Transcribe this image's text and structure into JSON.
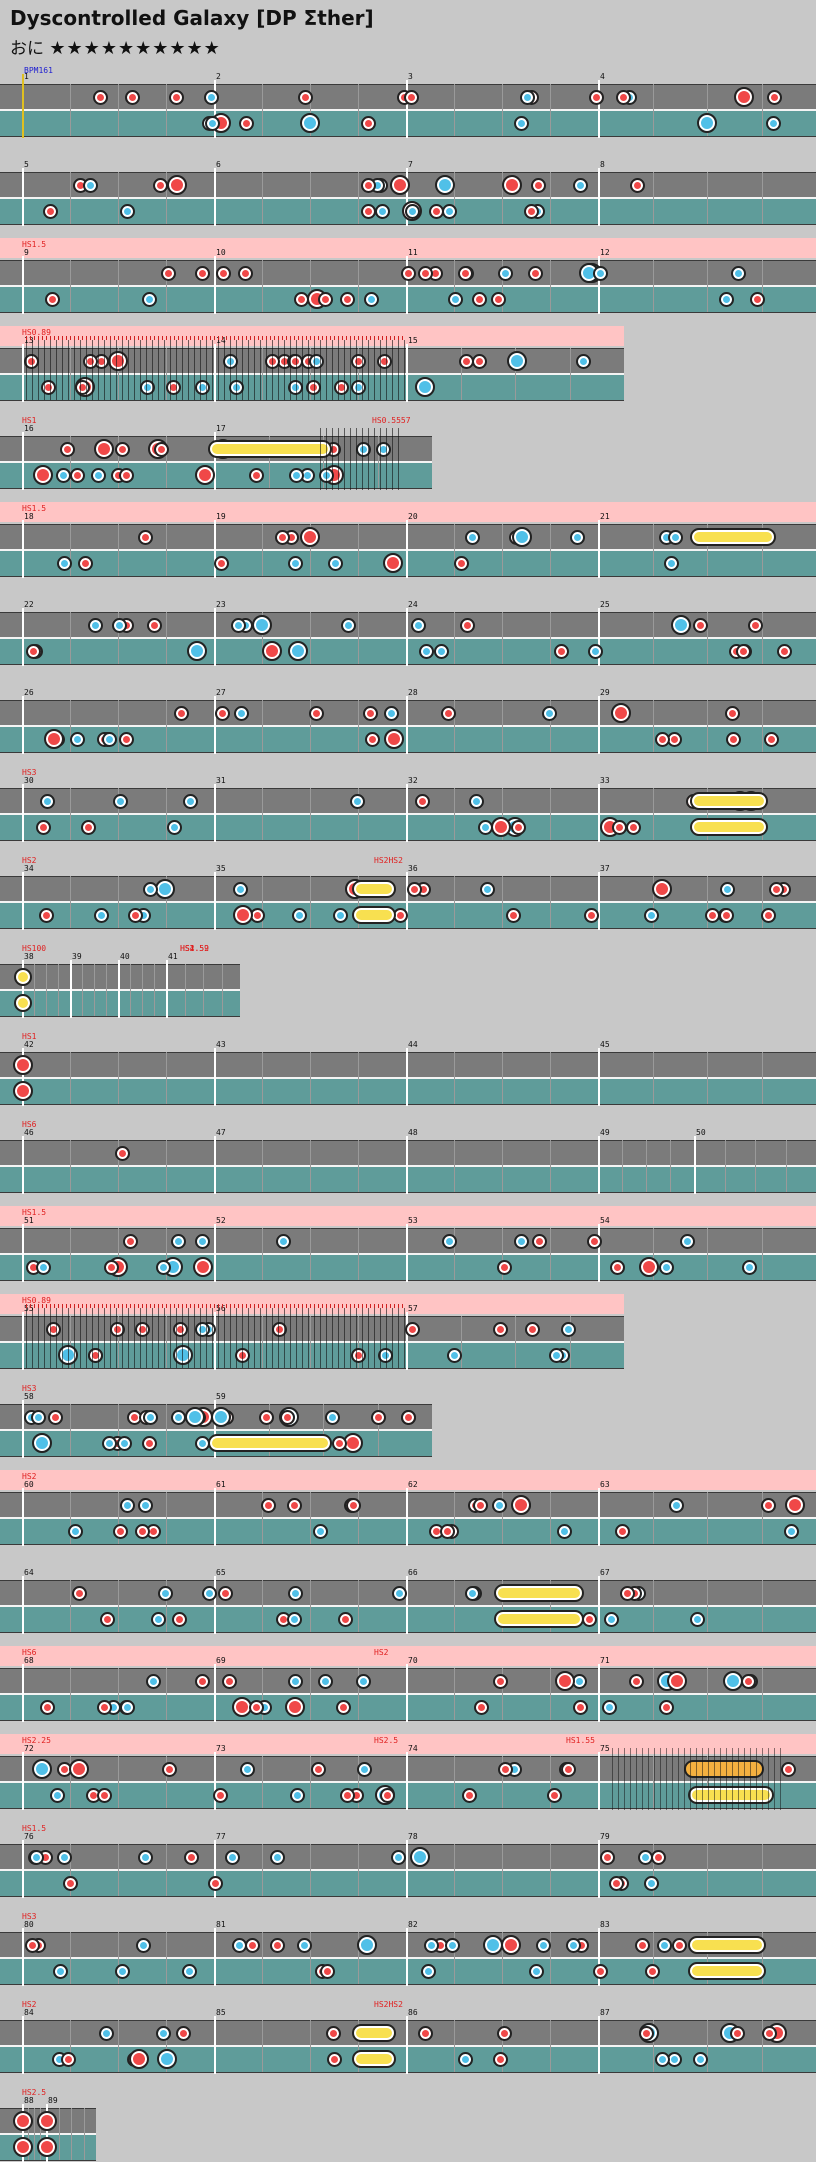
{
  "song": {
    "title": "Dyscontrolled Galaxy [DP Σther]",
    "difficulty_label": "おに",
    "stars": "★★★★★★★★★★"
  },
  "bpm_label": "BPM161",
  "rows": [
    {
      "measures": [
        "1",
        "2",
        "3",
        "4"
      ],
      "hs": []
    },
    {
      "measures": [
        "5",
        "6",
        "7",
        "8"
      ],
      "hs": []
    },
    {
      "measures": [
        "9",
        "10",
        "11",
        "12"
      ],
      "hs": [
        "HS1.5"
      ]
    },
    {
      "measures": [
        "13",
        "14",
        "15"
      ],
      "hs": [
        "HS0.89"
      ]
    },
    {
      "measures": [
        "16",
        "17"
      ],
      "hs": [
        "HS1",
        "HS0.5557"
      ]
    },
    {
      "measures": [
        "18",
        "19",
        "20",
        "21"
      ],
      "hs": [
        "HS1.5"
      ]
    },
    {
      "measures": [
        "22",
        "23",
        "24",
        "25"
      ],
      "hs": []
    },
    {
      "measures": [
        "26",
        "27",
        "28",
        "29"
      ],
      "hs": []
    },
    {
      "measures": [
        "30",
        "31",
        "32",
        "33"
      ],
      "hs": [
        "HS3"
      ]
    },
    {
      "measures": [
        "34",
        "35",
        "36",
        "37"
      ],
      "hs": [
        "HS2",
        "HS2HS2"
      ]
    },
    {
      "measures": [
        "38",
        "39",
        "40",
        "41"
      ],
      "hs": [
        "HS100",
        "HS4",
        "HS2.52",
        "HS1.59"
      ]
    },
    {
      "measures": [
        "42",
        "43",
        "44",
        "45"
      ],
      "hs": [
        "HS1"
      ]
    },
    {
      "measures": [
        "46",
        "47",
        "48",
        "49",
        "50"
      ],
      "hs": [
        "HS6"
      ]
    },
    {
      "measures": [
        "51",
        "52",
        "53",
        "54"
      ],
      "hs": [
        "HS1.5"
      ]
    },
    {
      "measures": [
        "55",
        "56",
        "57"
      ],
      "hs": [
        "HS0.89"
      ]
    },
    {
      "measures": [
        "58",
        "59"
      ],
      "hs": [
        "HS3"
      ]
    },
    {
      "measures": [
        "60",
        "61",
        "62",
        "63"
      ],
      "hs": [
        "HS2"
      ]
    },
    {
      "measures": [
        "64",
        "65",
        "66",
        "67"
      ],
      "hs": []
    },
    {
      "measures": [
        "68",
        "69",
        "70",
        "71"
      ],
      "hs": [
        "HS6",
        "HS2"
      ]
    },
    {
      "measures": [
        "72",
        "73",
        "74",
        "75"
      ],
      "hs": [
        "HS2.25",
        "HS2.5",
        "HS1.55"
      ]
    },
    {
      "measures": [
        "76",
        "77",
        "78",
        "79"
      ],
      "hs": [
        "HS1.5"
      ]
    },
    {
      "measures": [
        "80",
        "81",
        "82",
        "83"
      ],
      "hs": [
        "HS3"
      ]
    },
    {
      "measures": [
        "84",
        "85",
        "86",
        "87"
      ],
      "hs": [
        "HS2",
        "HS2HS2"
      ]
    },
    {
      "measures": [
        "88",
        "89"
      ],
      "hs": [
        "HS2.5"
      ]
    }
  ],
  "colors": {
    "don": "#f04848",
    "ka": "#50c0e8",
    "roll": "#f8e050",
    "lane": "#7b7b7b",
    "lane2": "#5f9c9a",
    "scroll_change": "#e02020"
  },
  "icons": {
    "star": "star-icon"
  }
}
